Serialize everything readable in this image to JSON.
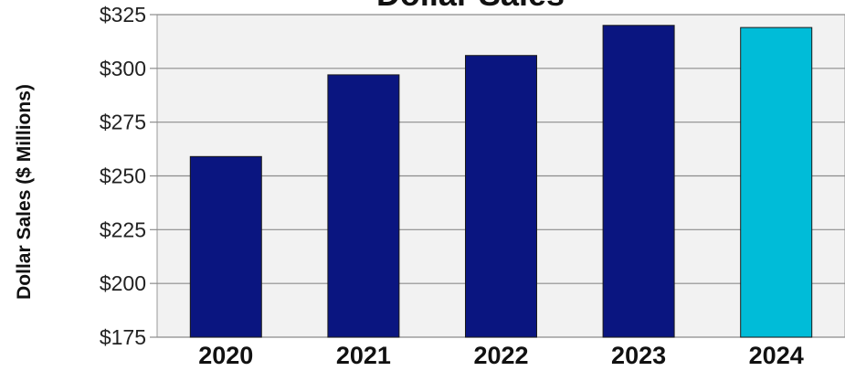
{
  "chart_data": {
    "type": "bar",
    "title": "Dollar Sales",
    "ylabel": "Dollar Sales ($ Millions)",
    "xlabel": "",
    "categories": [
      "2020",
      "2021",
      "2022",
      "2023",
      "2024"
    ],
    "values": [
      259,
      297,
      306,
      320,
      319
    ],
    "bar_colors": [
      "#0a1580",
      "#0a1580",
      "#0a1580",
      "#0a1580",
      "#00bcd8"
    ],
    "ylim": [
      175,
      325
    ],
    "yticks": [
      175,
      200,
      225,
      250,
      275,
      300,
      325
    ],
    "ytick_labels": [
      "$175",
      "$200",
      "$225",
      "$250",
      "$275",
      "$300",
      "$325"
    ],
    "grid": true,
    "legend": "none",
    "plot_background": "#f2f2f2"
  }
}
